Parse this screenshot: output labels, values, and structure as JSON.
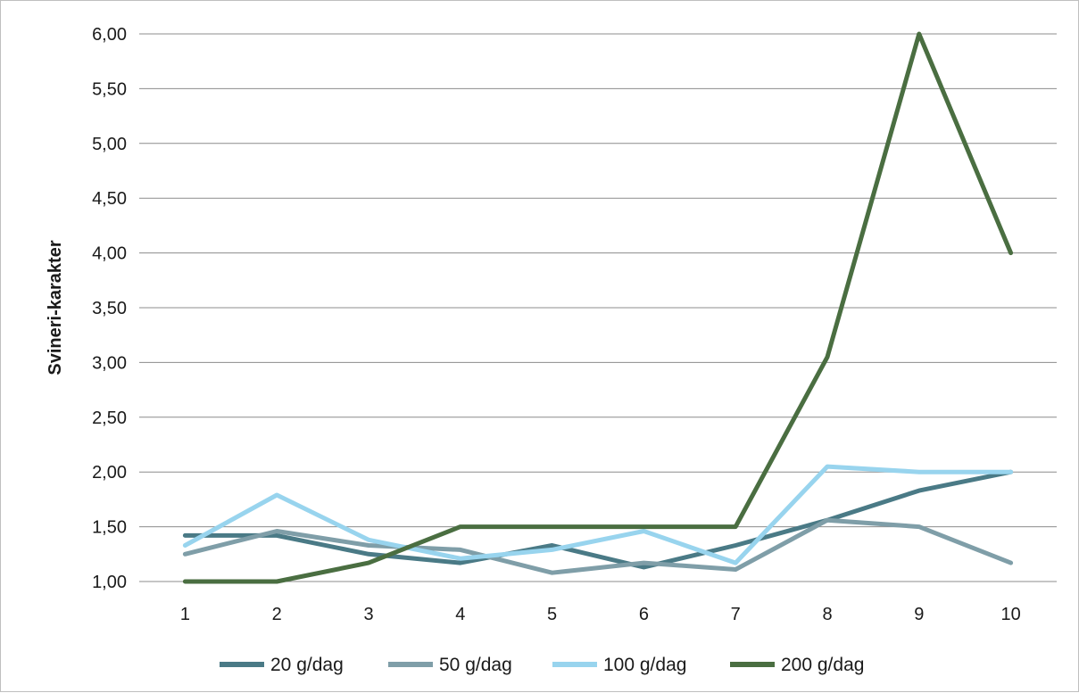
{
  "chart_data": {
    "type": "line",
    "title": "",
    "xlabel": "",
    "ylabel": "Svineri-karakter",
    "x": [
      1,
      2,
      3,
      4,
      5,
      6,
      7,
      8,
      9,
      10
    ],
    "ylim": [
      1.0,
      6.0
    ],
    "yticks": [
      "1,00",
      "1,50",
      "2,00",
      "2,50",
      "3,00",
      "3,50",
      "4,00",
      "4,50",
      "5,00",
      "5,50",
      "6,00"
    ],
    "grid": true,
    "legend": "bottom",
    "series": [
      {
        "name": "20 g/dag",
        "color": "#4a7a86",
        "values": [
          1.42,
          1.42,
          1.25,
          1.17,
          1.33,
          1.13,
          1.33,
          1.56,
          1.83,
          2.0
        ]
      },
      {
        "name": "50 g/dag",
        "color": "#7f9ea8",
        "values": [
          1.25,
          1.46,
          1.33,
          1.29,
          1.08,
          1.17,
          1.11,
          1.56,
          1.5,
          1.17
        ]
      },
      {
        "name": "100 g/dag",
        "color": "#98d4ee",
        "values": [
          1.33,
          1.79,
          1.38,
          1.21,
          1.29,
          1.46,
          1.17,
          2.05,
          2.0,
          2.0
        ]
      },
      {
        "name": "200 g/dag",
        "color": "#4a6e41",
        "values": [
          1.0,
          1.0,
          1.17,
          1.5,
          1.5,
          1.5,
          1.5,
          3.05,
          6.0,
          4.0
        ]
      }
    ]
  }
}
